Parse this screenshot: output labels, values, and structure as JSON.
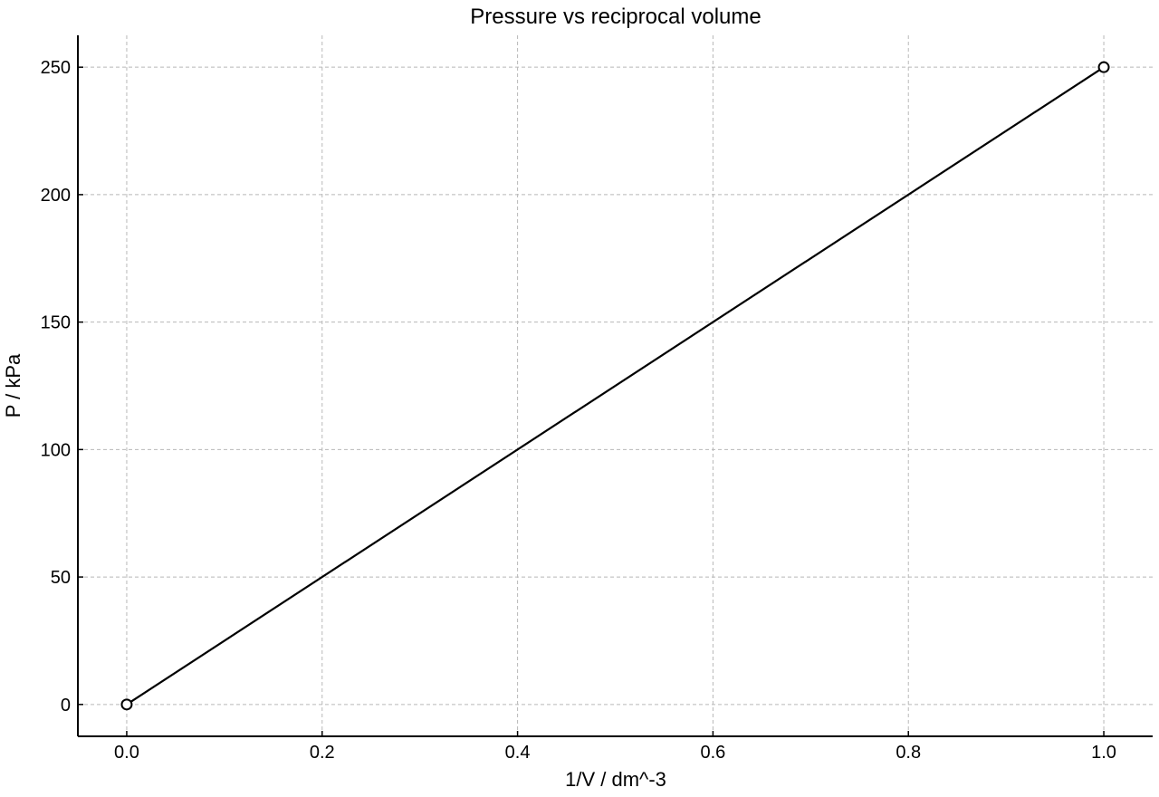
{
  "chart_data": {
    "type": "line",
    "title": "Pressure vs reciprocal volume",
    "xlabel": "1/V / dm^-3",
    "ylabel": "P / kPa",
    "xlim": [
      -0.05,
      1.05
    ],
    "ylim": [
      -12.5,
      262.5
    ],
    "xticks": [
      0.0,
      0.2,
      0.4,
      0.6,
      0.8,
      1.0
    ],
    "xtick_labels": [
      "0.0",
      "0.2",
      "0.4",
      "0.6",
      "0.8",
      "1.0"
    ],
    "yticks": [
      0,
      50,
      100,
      150,
      200,
      250
    ],
    "ytick_labels": [
      "0",
      "50",
      "100",
      "150",
      "200",
      "250"
    ],
    "grid": true,
    "series": [
      {
        "x": [
          0.0,
          1.0
        ],
        "y": [
          0,
          250
        ],
        "color": "#000000",
        "marker": "open-circle"
      }
    ]
  }
}
